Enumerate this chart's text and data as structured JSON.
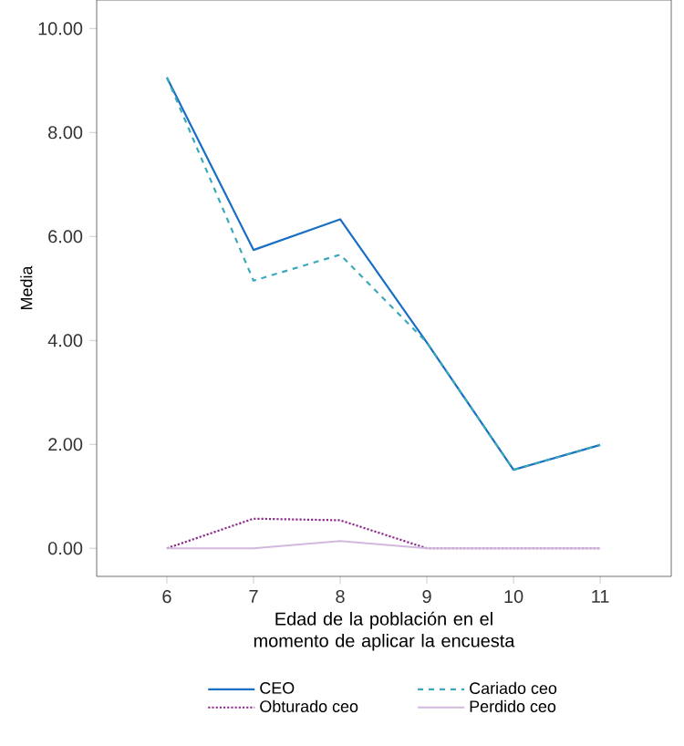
{
  "chart_data": {
    "type": "line",
    "xlabel": "Edad de la población en el momento de aplicar la encuesta",
    "ylabel": "Media",
    "x": [
      6,
      7,
      8,
      9,
      10,
      11
    ],
    "xlim": [
      5.19,
      11.82
    ],
    "xticks": [
      6,
      7,
      8,
      9,
      10,
      11
    ],
    "ylim": [
      -0.54,
      10.55
    ],
    "yticks": [
      {
        "value": 0,
        "label": "0.00"
      },
      {
        "value": 2,
        "label": "2.00"
      },
      {
        "value": 4,
        "label": "4.00"
      },
      {
        "value": 6,
        "label": "6.00"
      },
      {
        "value": 8,
        "label": "8.00"
      },
      {
        "value": 10,
        "label": "10.00"
      }
    ],
    "legend": "bottom",
    "grid": false,
    "series": [
      {
        "name": "CEO",
        "color": "#1a6fc4",
        "line_style": "solid",
        "values": [
          9.06,
          5.74,
          6.33,
          3.96,
          1.51,
          1.99
        ]
      },
      {
        "name": "Cariado ceo",
        "color": "#3aa8b8",
        "line_style": "dashed",
        "values": [
          9.06,
          5.15,
          5.65,
          3.96,
          1.51,
          1.99
        ]
      },
      {
        "name": "Obturado ceo",
        "color": "#8b2a8b",
        "line_style": "dotted",
        "values": [
          0,
          0.57,
          0.54,
          0,
          0,
          0
        ]
      },
      {
        "name": "Perdido ceo",
        "color": "#d3b8de",
        "line_style": "solid",
        "values": [
          0,
          0,
          0.14,
          0,
          0,
          0
        ]
      }
    ]
  }
}
